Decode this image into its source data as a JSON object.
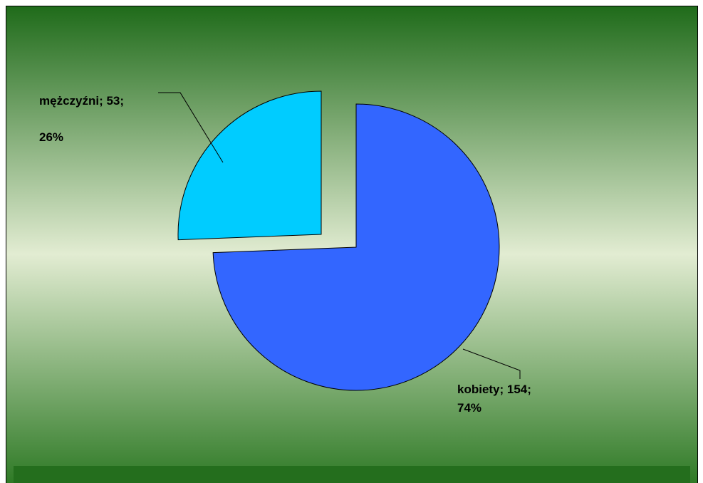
{
  "chart_data": {
    "type": "pie",
    "categories": [
      "kobiety",
      "mężczyźni"
    ],
    "values": [
      154,
      53
    ],
    "value_labels": [
      "kobiety; 154;",
      "mężczyźni; 53;"
    ],
    "percent_labels": [
      "74%",
      "26%"
    ],
    "colors": [
      "#3366ff",
      "#00ccff"
    ]
  }
}
